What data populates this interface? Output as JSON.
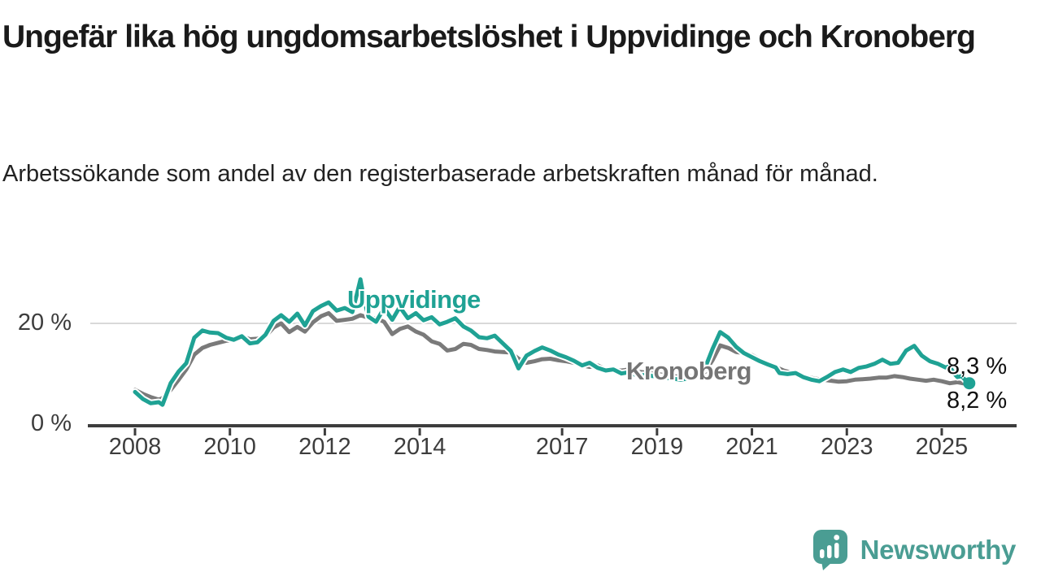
{
  "header": {
    "title": "Ungefär lika hög ungdomsarbetslöshet i Uppvidinge och Kronoberg",
    "subtitle": "Arbetssökande som andel av den registerbaserade arbetskraften månad för månad."
  },
  "chart_data": {
    "type": "line",
    "title": "Ungefär lika hög ungdomsarbetslöshet i Uppvidinge och Kronoberg",
    "subtitle": "Arbetssökande som andel av den registerbaserade arbetskraften månad för månad.",
    "unit": "%",
    "xlim": [
      2007.9,
      2026.3
    ],
    "ylim": [
      0,
      30
    ],
    "grid": "horizontal-20-only",
    "legend_position": "inline-labels-on-lines",
    "x_axis": {
      "ticks": [
        2008,
        2010,
        2012,
        2014,
        2017,
        2019,
        2021,
        2023,
        2025
      ],
      "tick_labels": [
        "2008",
        "2010",
        "2012",
        "2014",
        "2017",
        "2019",
        "2021",
        "2023",
        "2025"
      ]
    },
    "y_axis": {
      "ticks": [
        0,
        20
      ],
      "tick_labels": [
        "0 %",
        "20 %"
      ]
    },
    "series": [
      {
        "name": "Uppvidinge",
        "color": "#1fa294",
        "end_label": "8,3 %",
        "end_value": 8.3,
        "end_dot": true,
        "points": [
          [
            2008.0,
            6.6
          ],
          [
            2008.17,
            5.2
          ],
          [
            2008.33,
            4.4
          ],
          [
            2008.5,
            4.6
          ],
          [
            2008.58,
            4.1
          ],
          [
            2008.75,
            8.3
          ],
          [
            2008.92,
            10.6
          ],
          [
            2009.08,
            12.2
          ],
          [
            2009.25,
            17.2
          ],
          [
            2009.42,
            18.6
          ],
          [
            2009.58,
            18.2
          ],
          [
            2009.75,
            18.1
          ],
          [
            2009.92,
            17.2
          ],
          [
            2010.08,
            16.8
          ],
          [
            2010.25,
            17.5
          ],
          [
            2010.42,
            16.1
          ],
          [
            2010.58,
            16.3
          ],
          [
            2010.75,
            17.8
          ],
          [
            2010.92,
            20.5
          ],
          [
            2011.08,
            21.6
          ],
          [
            2011.25,
            20.3
          ],
          [
            2011.42,
            21.9
          ],
          [
            2011.58,
            19.6
          ],
          [
            2011.75,
            22.4
          ],
          [
            2011.92,
            23.4
          ],
          [
            2012.08,
            24.1
          ],
          [
            2012.25,
            22.5
          ],
          [
            2012.42,
            23.0
          ],
          [
            2012.58,
            22.2
          ],
          [
            2012.67,
            25.5
          ],
          [
            2012.75,
            28.6
          ],
          [
            2012.83,
            24.5
          ],
          [
            2012.92,
            21.3
          ],
          [
            2013.08,
            20.3
          ],
          [
            2013.25,
            23.0
          ],
          [
            2013.42,
            20.7
          ],
          [
            2013.58,
            23.2
          ],
          [
            2013.75,
            21.0
          ],
          [
            2013.92,
            22.0
          ],
          [
            2014.08,
            20.6
          ],
          [
            2014.25,
            21.2
          ],
          [
            2014.42,
            19.8
          ],
          [
            2014.58,
            20.3
          ],
          [
            2014.75,
            21.0
          ],
          [
            2014.92,
            19.4
          ],
          [
            2015.08,
            18.6
          ],
          [
            2015.25,
            17.3
          ],
          [
            2015.42,
            17.1
          ],
          [
            2015.58,
            17.6
          ],
          [
            2015.75,
            16.1
          ],
          [
            2015.92,
            14.6
          ],
          [
            2016.08,
            11.2
          ],
          [
            2016.25,
            13.7
          ],
          [
            2016.42,
            14.6
          ],
          [
            2016.58,
            15.3
          ],
          [
            2016.75,
            14.7
          ],
          [
            2016.92,
            13.9
          ],
          [
            2017.08,
            13.4
          ],
          [
            2017.25,
            12.7
          ],
          [
            2017.42,
            11.8
          ],
          [
            2017.58,
            12.3
          ],
          [
            2017.75,
            11.3
          ],
          [
            2017.92,
            10.8
          ],
          [
            2018.08,
            11.0
          ],
          [
            2018.25,
            10.2
          ],
          [
            2018.42,
            10.5
          ],
          [
            2018.58,
            9.8
          ],
          [
            2018.75,
            9.9
          ],
          [
            2019.0,
            9.6
          ],
          [
            2019.25,
            9.3
          ],
          [
            2019.5,
            9.0
          ],
          [
            2019.75,
            9.4
          ],
          [
            2020.0,
            11.0
          ],
          [
            2020.17,
            15.0
          ],
          [
            2020.33,
            18.3
          ],
          [
            2020.5,
            17.2
          ],
          [
            2020.67,
            15.4
          ],
          [
            2020.83,
            14.2
          ],
          [
            2021.0,
            13.4
          ],
          [
            2021.17,
            12.6
          ],
          [
            2021.33,
            12.0
          ],
          [
            2021.5,
            11.4
          ],
          [
            2021.58,
            10.3
          ],
          [
            2021.75,
            10.1
          ],
          [
            2021.92,
            10.3
          ],
          [
            2022.08,
            9.5
          ],
          [
            2022.25,
            9.0
          ],
          [
            2022.42,
            8.7
          ],
          [
            2022.58,
            9.5
          ],
          [
            2022.75,
            10.5
          ],
          [
            2022.92,
            11.0
          ],
          [
            2023.08,
            10.5
          ],
          [
            2023.25,
            11.3
          ],
          [
            2023.42,
            11.6
          ],
          [
            2023.58,
            12.1
          ],
          [
            2023.75,
            12.9
          ],
          [
            2023.92,
            12.1
          ],
          [
            2024.08,
            12.3
          ],
          [
            2024.25,
            14.7
          ],
          [
            2024.42,
            15.6
          ],
          [
            2024.58,
            13.7
          ],
          [
            2024.75,
            12.6
          ],
          [
            2024.92,
            12.1
          ],
          [
            2025.08,
            11.4
          ],
          [
            2025.17,
            11.6
          ],
          [
            2025.25,
            10.3
          ],
          [
            2025.33,
            9.5
          ],
          [
            2025.42,
            9.7
          ],
          [
            2025.5,
            8.9
          ],
          [
            2025.58,
            8.3
          ]
        ]
      },
      {
        "name": "Kronoberg",
        "color": "#7a7a7a",
        "end_label": "8,2 %",
        "end_value": 8.2,
        "end_dot": false,
        "points": [
          [
            2008.0,
            7.0
          ],
          [
            2008.17,
            6.2
          ],
          [
            2008.33,
            5.6
          ],
          [
            2008.5,
            5.1
          ],
          [
            2008.58,
            5.4
          ],
          [
            2008.75,
            7.0
          ],
          [
            2008.92,
            9.0
          ],
          [
            2009.08,
            11.0
          ],
          [
            2009.25,
            13.9
          ],
          [
            2009.42,
            15.2
          ],
          [
            2009.58,
            15.8
          ],
          [
            2009.75,
            16.2
          ],
          [
            2009.92,
            16.6
          ],
          [
            2010.08,
            16.8
          ],
          [
            2010.25,
            17.5
          ],
          [
            2010.42,
            16.9
          ],
          [
            2010.58,
            17.0
          ],
          [
            2010.75,
            17.5
          ],
          [
            2010.92,
            19.2
          ],
          [
            2011.08,
            20.0
          ],
          [
            2011.25,
            18.3
          ],
          [
            2011.42,
            19.3
          ],
          [
            2011.58,
            18.4
          ],
          [
            2011.75,
            20.2
          ],
          [
            2011.92,
            21.4
          ],
          [
            2012.08,
            22.0
          ],
          [
            2012.25,
            20.5
          ],
          [
            2012.42,
            20.7
          ],
          [
            2012.58,
            20.9
          ],
          [
            2012.75,
            21.6
          ],
          [
            2012.92,
            21.1
          ],
          [
            2013.08,
            21.0
          ],
          [
            2013.25,
            20.3
          ],
          [
            2013.42,
            17.9
          ],
          [
            2013.58,
            18.9
          ],
          [
            2013.75,
            19.4
          ],
          [
            2013.92,
            18.4
          ],
          [
            2014.08,
            17.8
          ],
          [
            2014.25,
            16.5
          ],
          [
            2014.42,
            16.0
          ],
          [
            2014.58,
            14.7
          ],
          [
            2014.75,
            15.0
          ],
          [
            2014.92,
            16.0
          ],
          [
            2015.08,
            15.8
          ],
          [
            2015.25,
            15.0
          ],
          [
            2015.42,
            14.8
          ],
          [
            2015.58,
            14.5
          ],
          [
            2015.75,
            14.4
          ],
          [
            2015.92,
            14.3
          ],
          [
            2016.08,
            13.1
          ],
          [
            2016.25,
            12.3
          ],
          [
            2016.42,
            12.6
          ],
          [
            2016.58,
            13.0
          ],
          [
            2016.75,
            13.1
          ],
          [
            2016.92,
            12.8
          ],
          [
            2017.08,
            12.6
          ],
          [
            2017.25,
            12.3
          ],
          [
            2017.42,
            11.8
          ],
          [
            2017.58,
            11.5
          ],
          [
            2017.75,
            11.8
          ],
          [
            2017.92,
            11.0
          ],
          [
            2018.08,
            10.9
          ],
          [
            2018.25,
            10.8
          ],
          [
            2018.42,
            11.0
          ],
          [
            2018.58,
            10.6
          ],
          [
            2018.83,
            10.3
          ],
          [
            2019.08,
            10.0
          ],
          [
            2019.33,
            9.7
          ],
          [
            2019.58,
            9.5
          ],
          [
            2019.83,
            9.8
          ],
          [
            2020.0,
            10.4
          ],
          [
            2020.17,
            12.8
          ],
          [
            2020.33,
            15.7
          ],
          [
            2020.5,
            15.2
          ],
          [
            2020.67,
            14.4
          ],
          [
            2020.83,
            14.2
          ],
          [
            2021.0,
            13.8
          ],
          [
            2021.17,
            12.9
          ],
          [
            2021.33,
            12.3
          ],
          [
            2021.5,
            11.5
          ],
          [
            2021.67,
            10.8
          ],
          [
            2021.83,
            10.4
          ],
          [
            2022.0,
            9.7
          ],
          [
            2022.17,
            9.5
          ],
          [
            2022.33,
            9.2
          ],
          [
            2022.5,
            9.0
          ],
          [
            2022.67,
            8.8
          ],
          [
            2022.83,
            8.6
          ],
          [
            2023.0,
            8.7
          ],
          [
            2023.17,
            9.0
          ],
          [
            2023.33,
            9.1
          ],
          [
            2023.5,
            9.2
          ],
          [
            2023.67,
            9.4
          ],
          [
            2023.83,
            9.4
          ],
          [
            2024.0,
            9.7
          ],
          [
            2024.17,
            9.5
          ],
          [
            2024.33,
            9.2
          ],
          [
            2024.5,
            9.0
          ],
          [
            2024.67,
            8.8
          ],
          [
            2024.83,
            9.0
          ],
          [
            2025.0,
            8.7
          ],
          [
            2025.17,
            8.3
          ],
          [
            2025.33,
            8.5
          ],
          [
            2025.5,
            8.2
          ],
          [
            2025.58,
            8.2
          ]
        ]
      }
    ],
    "colors": {
      "uppvidinge_line": "#1fa294",
      "kronoberg_line": "#7a7a7a",
      "axis": "#3d3d3d",
      "gridline": "#d9d9d9",
      "title_text": "#1a1a1a",
      "brand_teal": "#4a9d93"
    }
  },
  "footer": {
    "brand": "Newsworthy"
  }
}
